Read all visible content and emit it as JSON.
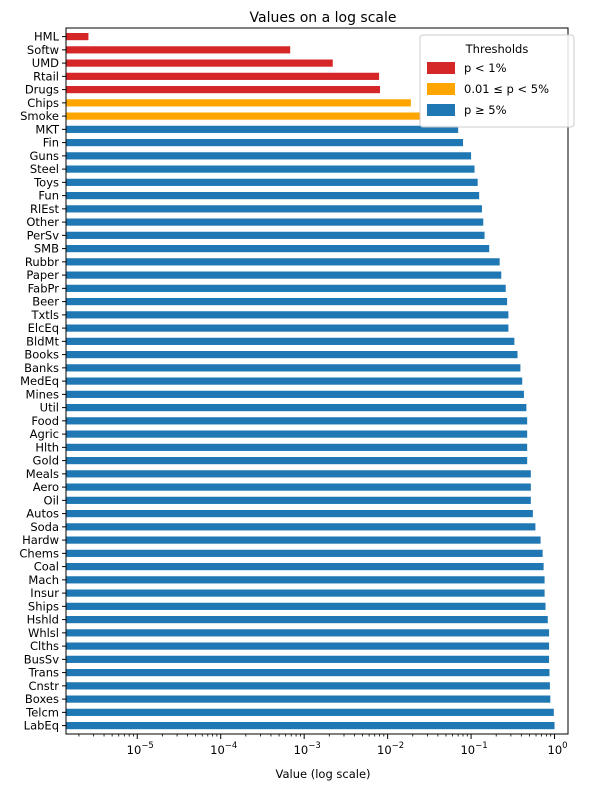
{
  "chart_data": {
    "type": "bar",
    "orientation": "horizontal",
    "title": "Values on a log scale",
    "xlabel": "Value (log scale)",
    "ylabel": "",
    "xscale": "log",
    "xlim": [
      1.4e-06,
      1.45
    ],
    "x_ticks": [
      {
        "value": 1e-05,
        "base": "10",
        "exp": "−5"
      },
      {
        "value": 0.0001,
        "base": "10",
        "exp": "−4"
      },
      {
        "value": 0.001,
        "base": "10",
        "exp": "−3"
      },
      {
        "value": 0.01,
        "base": "10",
        "exp": "−2"
      },
      {
        "value": 0.1,
        "base": "10",
        "exp": "−1"
      },
      {
        "value": 1,
        "base": "10",
        "exp": "0"
      }
    ],
    "grid": false,
    "legend": {
      "title": "Thresholds",
      "placement": "top-right",
      "items": [
        {
          "label": "p < 1%",
          "color": "#d62728"
        },
        {
          "label": "0.01 ≤ p < 5%",
          "color": "#ffa500"
        },
        {
          "label": "p ≥ 5%",
          "color": "#1f77b4"
        }
      ]
    },
    "bars": [
      {
        "label": "HML",
        "value": 2.6e-06,
        "color": "#d62728"
      },
      {
        "label": "Softw",
        "value": 0.00068,
        "color": "#d62728"
      },
      {
        "label": "UMD",
        "value": 0.0022,
        "color": "#d62728"
      },
      {
        "label": "Rtail",
        "value": 0.0079,
        "color": "#d62728"
      },
      {
        "label": "Drugs",
        "value": 0.0081,
        "color": "#d62728"
      },
      {
        "label": "Chips",
        "value": 0.019,
        "color": "#ffa500"
      },
      {
        "label": "Smoke",
        "value": 0.025,
        "color": "#ffa500"
      },
      {
        "label": "MKT",
        "value": 0.07,
        "color": "#1f77b4"
      },
      {
        "label": "Fin",
        "value": 0.08,
        "color": "#1f77b4"
      },
      {
        "label": "Guns",
        "value": 0.1,
        "color": "#1f77b4"
      },
      {
        "label": "Steel",
        "value": 0.11,
        "color": "#1f77b4"
      },
      {
        "label": "Toys",
        "value": 0.12,
        "color": "#1f77b4"
      },
      {
        "label": "Fun",
        "value": 0.125,
        "color": "#1f77b4"
      },
      {
        "label": "RlEst",
        "value": 0.135,
        "color": "#1f77b4"
      },
      {
        "label": "Other",
        "value": 0.14,
        "color": "#1f77b4"
      },
      {
        "label": "PerSv",
        "value": 0.145,
        "color": "#1f77b4"
      },
      {
        "label": "SMB",
        "value": 0.165,
        "color": "#1f77b4"
      },
      {
        "label": "Rubbr",
        "value": 0.22,
        "color": "#1f77b4"
      },
      {
        "label": "Paper",
        "value": 0.23,
        "color": "#1f77b4"
      },
      {
        "label": "FabPr",
        "value": 0.26,
        "color": "#1f77b4"
      },
      {
        "label": "Beer",
        "value": 0.27,
        "color": "#1f77b4"
      },
      {
        "label": "Txtls",
        "value": 0.28,
        "color": "#1f77b4"
      },
      {
        "label": "ElcEq",
        "value": 0.28,
        "color": "#1f77b4"
      },
      {
        "label": "BldMt",
        "value": 0.33,
        "color": "#1f77b4"
      },
      {
        "label": "Books",
        "value": 0.36,
        "color": "#1f77b4"
      },
      {
        "label": "Banks",
        "value": 0.39,
        "color": "#1f77b4"
      },
      {
        "label": "MedEq",
        "value": 0.41,
        "color": "#1f77b4"
      },
      {
        "label": "Mines",
        "value": 0.43,
        "color": "#1f77b4"
      },
      {
        "label": "Util",
        "value": 0.46,
        "color": "#1f77b4"
      },
      {
        "label": "Food",
        "value": 0.47,
        "color": "#1f77b4"
      },
      {
        "label": "Agric",
        "value": 0.47,
        "color": "#1f77b4"
      },
      {
        "label": "Hlth",
        "value": 0.47,
        "color": "#1f77b4"
      },
      {
        "label": "Gold",
        "value": 0.47,
        "color": "#1f77b4"
      },
      {
        "label": "Meals",
        "value": 0.52,
        "color": "#1f77b4"
      },
      {
        "label": "Aero",
        "value": 0.52,
        "color": "#1f77b4"
      },
      {
        "label": "Oil",
        "value": 0.52,
        "color": "#1f77b4"
      },
      {
        "label": "Autos",
        "value": 0.55,
        "color": "#1f77b4"
      },
      {
        "label": "Soda",
        "value": 0.59,
        "color": "#1f77b4"
      },
      {
        "label": "Hardw",
        "value": 0.68,
        "color": "#1f77b4"
      },
      {
        "label": "Chems",
        "value": 0.72,
        "color": "#1f77b4"
      },
      {
        "label": "Coal",
        "value": 0.74,
        "color": "#1f77b4"
      },
      {
        "label": "Mach",
        "value": 0.76,
        "color": "#1f77b4"
      },
      {
        "label": "Insur",
        "value": 0.76,
        "color": "#1f77b4"
      },
      {
        "label": "Ships",
        "value": 0.78,
        "color": "#1f77b4"
      },
      {
        "label": "Hshld",
        "value": 0.83,
        "color": "#1f77b4"
      },
      {
        "label": "Whlsl",
        "value": 0.86,
        "color": "#1f77b4"
      },
      {
        "label": "Clths",
        "value": 0.86,
        "color": "#1f77b4"
      },
      {
        "label": "BusSv",
        "value": 0.86,
        "color": "#1f77b4"
      },
      {
        "label": "Trans",
        "value": 0.87,
        "color": "#1f77b4"
      },
      {
        "label": "Cnstr",
        "value": 0.88,
        "color": "#1f77b4"
      },
      {
        "label": "Boxes",
        "value": 0.89,
        "color": "#1f77b4"
      },
      {
        "label": "Telcm",
        "value": 0.98,
        "color": "#1f77b4"
      },
      {
        "label": "LabEq",
        "value": 1.0,
        "color": "#1f77b4"
      }
    ]
  }
}
